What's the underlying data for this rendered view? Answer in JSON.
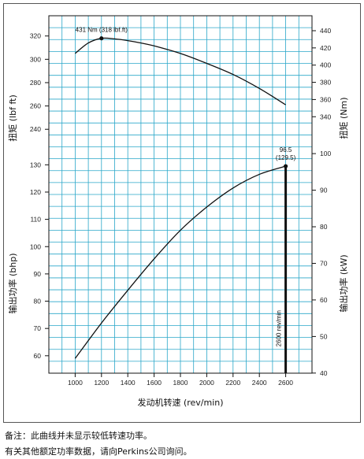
{
  "colors": {
    "grid": "#2aa7c9",
    "line": "#111111",
    "background": "#ffffff"
  },
  "chart_data": {
    "type": "line",
    "grid": true,
    "xlabel": "发动机转速 (rev/min)",
    "x_ticks": [
      1000,
      1200,
      1400,
      1600,
      1800,
      2000,
      2200,
      2400,
      2600
    ],
    "xlim": [
      800,
      2800
    ],
    "torque_panel": {
      "ylabel_left": "扭矩 (lbf ft)",
      "ylabel_right": "扭矩 (Nm)",
      "left_ticks": [
        240,
        260,
        280,
        300,
        320
      ],
      "right_ticks": [
        340,
        360,
        380,
        400,
        420,
        440
      ],
      "ylim_left": [
        228,
        336
      ],
      "series": [
        {
          "x": [
            1000,
            1100,
            1200,
            1300,
            1400,
            1500,
            1600,
            1800,
            2000,
            2200,
            2400,
            2600
          ],
          "y": [
            305,
            314,
            318,
            317.5,
            316,
            314,
            311.5,
            305,
            296.5,
            287,
            275,
            261
          ]
        }
      ],
      "annotations": [
        {
          "x": 1200,
          "y": 318,
          "text": "431 Nm (318 lbf.ft)"
        }
      ]
    },
    "power_panel": {
      "ylabel_left": "输出功率 (bhp)",
      "ylabel_right": "输出功率 (kW)",
      "left_ticks": [
        60,
        70,
        80,
        90,
        100,
        110,
        120,
        130
      ],
      "right_ticks": [
        40,
        50,
        60,
        70,
        80,
        90,
        100
      ],
      "ylim_left": [
        53.6,
        135
      ],
      "series": [
        {
          "x": [
            1000,
            1200,
            1400,
            1600,
            1800,
            2000,
            2200,
            2400,
            2600
          ],
          "y": [
            59,
            72,
            84,
            95.5,
            106,
            114.5,
            121.5,
            126.5,
            129.5
          ]
        }
      ],
      "annotations": [
        {
          "x": 2600,
          "y": 129.5,
          "line1": "96.5",
          "line2": "(129.5)"
        },
        {
          "x": 2600,
          "text": "2600 rev/min"
        }
      ]
    }
  },
  "notes": [
    "备注：此曲线并未显示较低转速功率。",
    "有关其他额定功率数据，请向Perkins公司询问。"
  ]
}
